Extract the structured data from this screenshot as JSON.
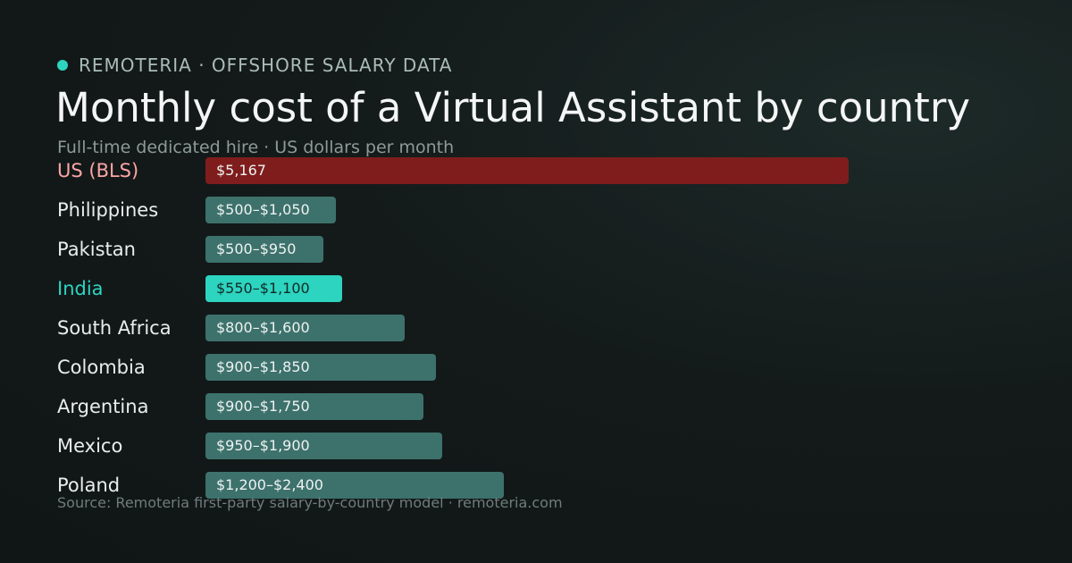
{
  "header": {
    "brand": "REMOTERIA · OFFSHORE SALARY DATA",
    "title": "Monthly cost of a Virtual Assistant by country",
    "subtitle": "Full-time dedicated hire · US dollars per month"
  },
  "footer": {
    "source": "Source: Remoteria first-party salary-by-country model · remoteria.com"
  },
  "colors": {
    "benchmark": "#7f1d1d",
    "benchmark_label": "#fca5a5",
    "default": "#3d716c",
    "highlight": "#2dd4bf",
    "highlight_label": "#2dd4bf",
    "highlight_text": "#0f2a27",
    "brand_dot": "#2dd4bf"
  },
  "chart_data": {
    "type": "bar",
    "orientation": "horizontal",
    "title": "Monthly cost of a Virtual Assistant by country",
    "subtitle": "Full-time dedicated hire · US dollars per month",
    "xlabel": "",
    "ylabel": "",
    "xlim": [
      0,
      5167
    ],
    "grid": false,
    "categories": [
      "US (BLS)",
      "Philippines",
      "Pakistan",
      "India",
      "South Africa",
      "Colombia",
      "Argentina",
      "Mexico",
      "Poland"
    ],
    "rows": [
      {
        "country": "US (BLS)",
        "low": null,
        "high": 5167,
        "value_label": "$5,167",
        "style": "benchmark"
      },
      {
        "country": "Philippines",
        "low": 500,
        "high": 1050,
        "value_label": "$500–$1,050",
        "style": "default"
      },
      {
        "country": "Pakistan",
        "low": 500,
        "high": 950,
        "value_label": "$500–$950",
        "style": "default"
      },
      {
        "country": "India",
        "low": 550,
        "high": 1100,
        "value_label": "$550–$1,100",
        "style": "highlight"
      },
      {
        "country": "South Africa",
        "low": 800,
        "high": 1600,
        "value_label": "$800–$1,600",
        "style": "default"
      },
      {
        "country": "Colombia",
        "low": 900,
        "high": 1850,
        "value_label": "$900–$1,850",
        "style": "default"
      },
      {
        "country": "Argentina",
        "low": 900,
        "high": 1750,
        "value_label": "$900–$1,750",
        "style": "default"
      },
      {
        "country": "Mexico",
        "low": 950,
        "high": 1900,
        "value_label": "$950–$1,900",
        "style": "default"
      },
      {
        "country": "Poland",
        "low": 1200,
        "high": 2400,
        "value_label": "$1,200–$2,400",
        "style": "default"
      }
    ]
  }
}
